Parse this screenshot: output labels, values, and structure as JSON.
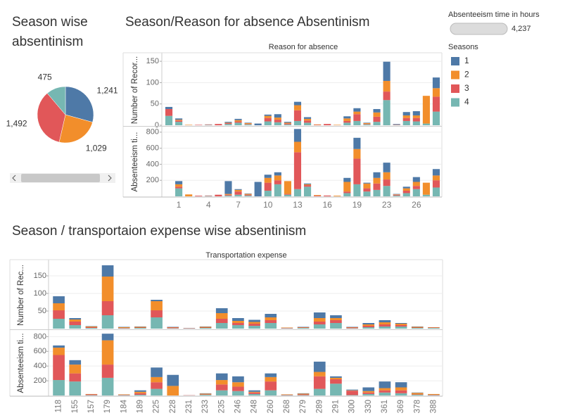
{
  "filter": {
    "title": "Absenteeism time in hours",
    "value": 4237,
    "value_label": "4,237"
  },
  "chart_data": [
    {
      "type": "pie",
      "title": "Season wise absentinism",
      "values": [
        1241,
        1029,
        1492,
        475
      ],
      "value_labels": [
        "1,241",
        "1,029",
        "1,492",
        "475"
      ],
      "colors": [
        "#4e79a7",
        "#f28e2b",
        "#e15759",
        "#76b7b2"
      ]
    },
    {
      "type": "bar",
      "stacked": true,
      "title": "Season/Reason for absence Absentinism",
      "x_label": "Reason for absence",
      "legend_title": "Seasons",
      "categories": [
        null,
        1,
        null,
        null,
        4,
        null,
        null,
        7,
        null,
        null,
        10,
        null,
        null,
        13,
        null,
        null,
        16,
        null,
        null,
        19,
        null,
        null,
        23,
        null,
        null,
        26,
        null,
        null
      ],
      "series": [
        {
          "name": "1",
          "color": "#4e79a7"
        },
        {
          "name": "2",
          "color": "#f28e2b"
        },
        {
          "name": "3",
          "color": "#e15759"
        },
        {
          "name": "4",
          "color": "#76b7b2"
        }
      ],
      "panes": [
        {
          "y_label": "Number of Recor...",
          "ylim": [
            0,
            165
          ],
          "yticks": [
            0,
            50,
            100,
            150
          ],
          "grid": true,
          "series": [
            {
              "values": [
                5,
                3,
                0,
                0,
                0,
                0,
                2,
                3,
                1,
                4,
                3,
                8,
                2,
                8,
                4,
                0,
                0,
                0,
                5,
                8,
                1,
                8,
                45,
                1,
                8,
                10,
                0,
                25
              ]
            },
            {
              "values": [
                0,
                2,
                1,
                0,
                0,
                0,
                1,
                3,
                2,
                0,
                5,
                5,
                2,
                12,
                4,
                1,
                0,
                1,
                6,
                6,
                2,
                10,
                25,
                0,
                6,
                6,
                65,
                20
              ]
            },
            {
              "values": [
                16,
                3,
                0,
                1,
                1,
                3,
                2,
                3,
                1,
                0,
                8,
                6,
                2,
                25,
                5,
                1,
                3,
                0,
                4,
                16,
                1,
                12,
                20,
                1,
                7,
                8,
                0,
                35
              ]
            },
            {
              "values": [
                22,
                8,
                0,
                0,
                1,
                0,
                3,
                6,
                2,
                0,
                9,
                7,
                2,
                10,
                6,
                0,
                0,
                0,
                6,
                10,
                2,
                8,
                59,
                1,
                10,
                9,
                4,
                32
              ]
            }
          ]
        },
        {
          "y_label": "Absenteeism ti...",
          "ylim": [
            0,
            860
          ],
          "yticks": [
            200,
            400,
            600,
            800
          ],
          "grid": true,
          "series": [
            {
              "values": [
                0,
                40,
                0,
                0,
                0,
                0,
                160,
                10,
                5,
                180,
                40,
                40,
                0,
                160,
                10,
                0,
                0,
                0,
                50,
                140,
                10,
                70,
                120,
                5,
                20,
                60,
                0,
                80
              ]
            },
            {
              "values": [
                0,
                30,
                24,
                0,
                0,
                0,
                10,
                20,
                10,
                0,
                60,
                60,
                160,
                130,
                10,
                8,
                0,
                8,
                120,
                120,
                60,
                70,
                90,
                5,
                30,
                50,
                150,
                60
              ]
            },
            {
              "values": [
                0,
                20,
                0,
                8,
                5,
                20,
                10,
                40,
                10,
                0,
                100,
                50,
                10,
                460,
                20,
                8,
                10,
                0,
                20,
                320,
                40,
                80,
                80,
                10,
                30,
                40,
                0,
                90
              ]
            },
            {
              "values": [
                0,
                100,
                0,
                0,
                5,
                0,
                10,
                20,
                10,
                0,
                70,
                150,
                20,
                90,
                120,
                0,
                0,
                0,
                40,
                150,
                60,
                80,
                130,
                10,
                40,
                90,
                20,
                110
              ]
            }
          ]
        }
      ]
    },
    {
      "type": "bar",
      "stacked": true,
      "title": "Season / transportaion expense wise absentinism",
      "x_label": "Transportation expense",
      "categories": [
        118,
        155,
        157,
        179,
        184,
        189,
        225,
        228,
        231,
        233,
        235,
        246,
        248,
        260,
        268,
        279,
        289,
        291,
        300,
        330,
        361,
        369,
        378,
        388
      ],
      "series": [
        {
          "color": "#4e79a7"
        },
        {
          "color": "#f28e2b"
        },
        {
          "color": "#e15759"
        },
        {
          "color": "#76b7b2"
        }
      ],
      "panes": [
        {
          "y_label": "Number of Rec...",
          "ylim": [
            0,
            190
          ],
          "yticks": [
            50,
            100,
            150
          ],
          "grid": true,
          "series": [
            {
              "values": [
                20,
                4,
                1,
                32,
                1,
                1,
                4,
                1,
                0,
                1,
                14,
                8,
                6,
                10,
                0,
                1,
                16,
                8,
                1,
                4,
                6,
                2,
                1,
                0
              ]
            },
            {
              "values": [
                20,
                6,
                2,
                70,
                2,
                2,
                26,
                1,
                0,
                2,
                16,
                6,
                5,
                8,
                1,
                1,
                10,
                6,
                1,
                4,
                6,
                4,
                2,
                1
              ]
            },
            {
              "values": [
                24,
                10,
                2,
                40,
                1,
                1,
                20,
                2,
                1,
                1,
                12,
                6,
                6,
                8,
                1,
                1,
                8,
                8,
                2,
                4,
                6,
                4,
                1,
                1
              ]
            },
            {
              "values": [
                28,
                10,
                2,
                38,
                1,
                2,
                32,
                1,
                1,
                2,
                16,
                10,
                8,
                16,
                1,
                2,
                12,
                16,
                1,
                4,
                6,
                6,
                2,
                2
              ]
            }
          ]
        },
        {
          "y_label": "Absenteeism ti...",
          "ylim": [
            0,
            880
          ],
          "yticks": [
            200,
            400,
            600,
            800
          ],
          "grid": true,
          "series": [
            {
              "values": [
                30,
                60,
                0,
                90,
                0,
                20,
                130,
                150,
                0,
                5,
                90,
                80,
                20,
                50,
                0,
                5,
                140,
                20,
                10,
                50,
                90,
                70,
                5,
                0
              ]
            },
            {
              "values": [
                100,
                120,
                5,
                330,
                5,
                20,
                70,
                130,
                0,
                10,
                60,
                60,
                10,
                60,
                5,
                10,
                60,
                20,
                5,
                20,
                30,
                40,
                20,
                10
              ]
            },
            {
              "values": [
                340,
                110,
                10,
                180,
                5,
                20,
                90,
                0,
                3,
                5,
                80,
                60,
                20,
                120,
                5,
                10,
                170,
                60,
                60,
                20,
                30,
                40,
                5,
                5
              ]
            },
            {
              "values": [
                210,
                190,
                5,
                240,
                5,
                10,
                90,
                0,
                2,
                10,
                70,
                60,
                20,
                70,
                5,
                5,
                90,
                160,
                5,
                20,
                40,
                30,
                10,
                5
              ]
            }
          ]
        }
      ]
    }
  ]
}
